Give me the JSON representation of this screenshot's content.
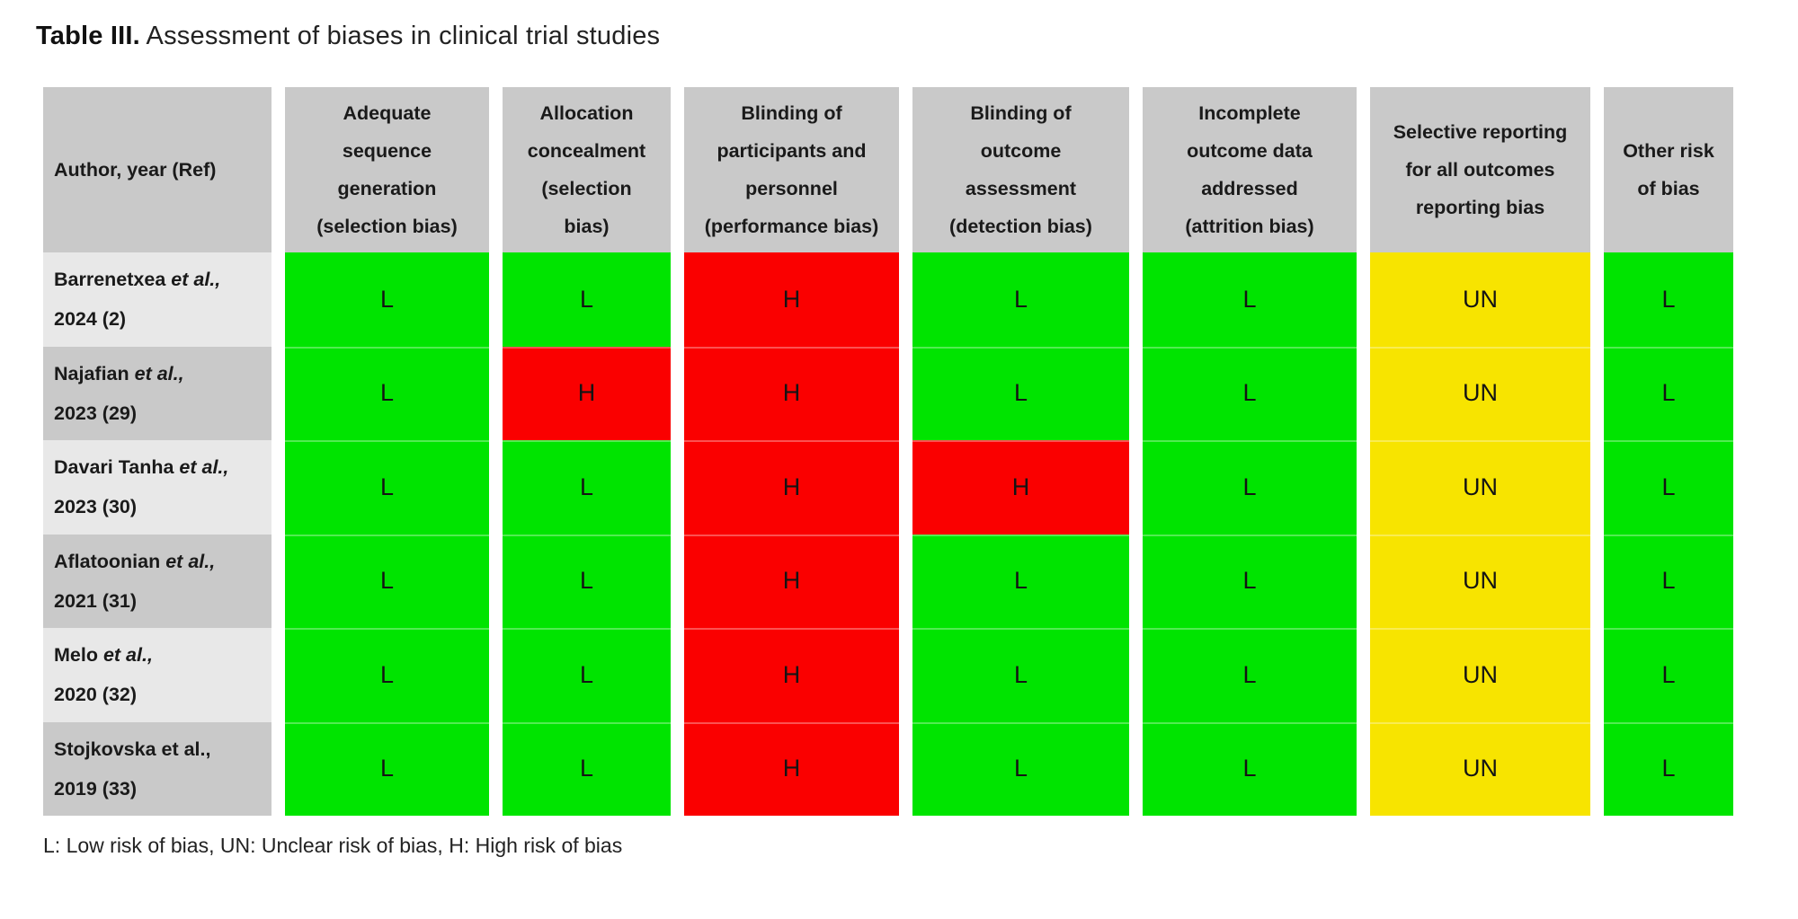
{
  "title": {
    "label": "Table III.",
    "text": " Assessment of biases in clinical trial studies"
  },
  "columns": [
    "Author, year (Ref)",
    "Adequate\nsequence\ngeneration\n(selection bias)",
    "Allocation\nconcealment\n(selection\nbias)",
    "Blinding of\nparticipants and\npersonnel\n(performance bias)",
    "Blinding of\noutcome\nassessment\n(detection bias)",
    "Incomplete\noutcome data\naddressed\n(attrition bias)",
    "Selective reporting\nfor all outcomes\nreporting bias",
    "Other risk\nof bias"
  ],
  "rows": [
    {
      "name": "Barrenetxea",
      "etal": " et al.,",
      "year": "2024 (2)",
      "ratings": [
        "L",
        "L",
        "H",
        "L",
        "L",
        "UN",
        "L"
      ]
    },
    {
      "name": "Najafian",
      "etal": " et al.,",
      "year": "2023 (29)",
      "ratings": [
        "L",
        "H",
        "H",
        "L",
        "L",
        "UN",
        "L"
      ]
    },
    {
      "name": "Davari Tanha",
      "etal": " et al.,",
      "year": "2023 (30)",
      "ratings": [
        "L",
        "L",
        "H",
        "H",
        "L",
        "UN",
        "L"
      ]
    },
    {
      "name": "Aflatoonian",
      "etal": " et al.,",
      "year": "2021 (31)",
      "ratings": [
        "L",
        "L",
        "H",
        "L",
        "L",
        "UN",
        "L"
      ]
    },
    {
      "name": "Melo",
      "etal": " et al.,",
      "year": "2020 (32)",
      "ratings": [
        "L",
        "L",
        "H",
        "L",
        "L",
        "UN",
        "L"
      ]
    },
    {
      "name": "Stojkovska et al.,",
      "etal": "",
      "year": "2019 (33)",
      "ratings": [
        "L",
        "L",
        "H",
        "L",
        "L",
        "UN",
        "L"
      ]
    }
  ],
  "colors": {
    "L": "#00e400",
    "H": "#fa0000",
    "UN": "#f7e400",
    "header_bg": "#c9c9c9",
    "row_light_bg": "#e8e8e8",
    "row_dark_bg": "#c9c9c9"
  },
  "legend": "L: Low risk of bias, UN: Unclear risk of bias, H: High risk of bias"
}
